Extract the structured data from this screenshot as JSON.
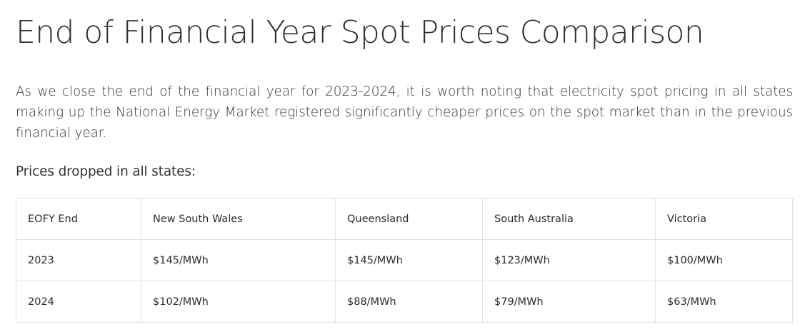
{
  "article": {
    "title": "End of Financial Year Spot Prices Comparison",
    "intro": "As we close the end of the financial year for 2023-2024, it is worth noting that electricity spot pricing in all states making up the National Energy Market registered significantly cheaper prices on the spot market than in the previous financial year.",
    "lead": "Prices dropped in all states:"
  },
  "table": {
    "headers": [
      "EOFY End",
      "New South Wales",
      "Queensland",
      "South Australia",
      "Victoria"
    ],
    "rows": [
      [
        "2023",
        "$145/MWh",
        "$145/MWh",
        "$123/MWh",
        "$100/MWh"
      ],
      [
        "2024",
        "$102/MWh",
        "$88/MWh",
        "$79/MWh",
        "$63/MWh"
      ]
    ]
  }
}
